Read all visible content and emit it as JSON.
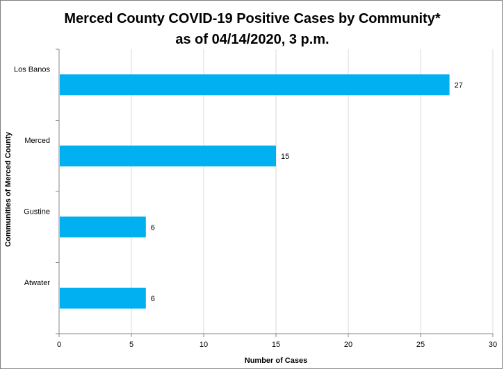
{
  "chart_data": {
    "type": "bar",
    "orientation": "horizontal",
    "title_lines": [
      "Merced County COVID-19 Positive Cases by Community*",
      "as of 04/14/2020, 3 p.m."
    ],
    "xlabel": "Number of Cases",
    "ylabel": "Communities of Merced County",
    "categories": [
      "Los Banos",
      "Merced",
      "Gustine",
      "Atwater"
    ],
    "values": [
      27,
      15,
      6,
      6
    ],
    "xlim": [
      0,
      30
    ],
    "xticks": [
      0,
      5,
      10,
      15,
      20,
      25,
      30
    ],
    "grid": "vertical",
    "legend": "none",
    "bar_color": "#00B0F0",
    "grid_color": "#d9d9d9"
  }
}
